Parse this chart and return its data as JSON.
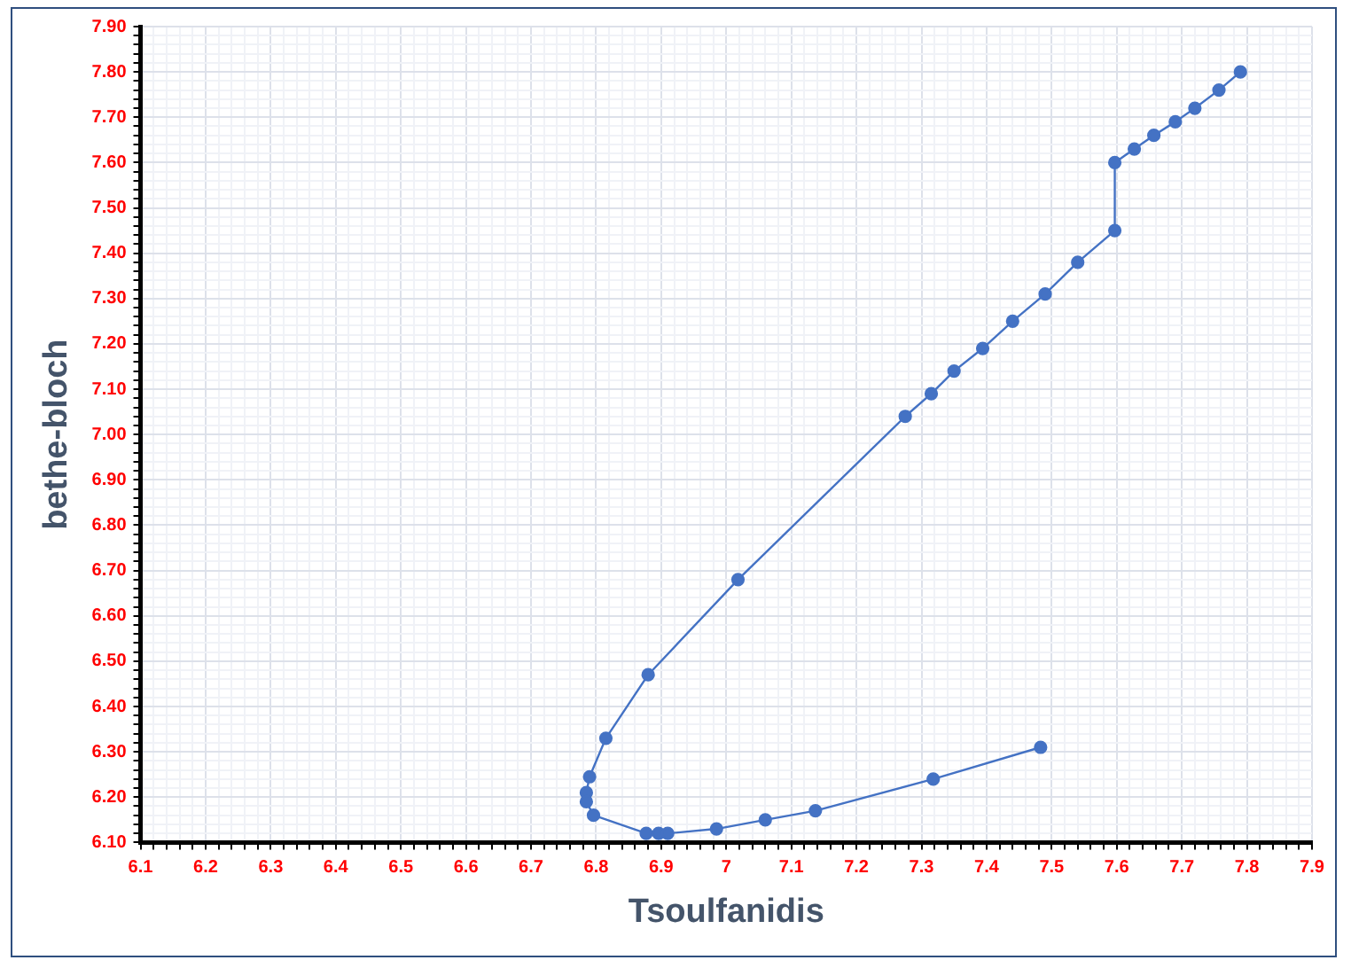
{
  "chart_data": {
    "type": "line",
    "xlabel": "Tsoulfanidis",
    "ylabel": "bethe-bloch",
    "xlim": [
      6.1,
      7.9
    ],
    "xticks": [
      6.1,
      6.2,
      6.3,
      6.4,
      6.5,
      6.6,
      6.7,
      6.8,
      6.9,
      7,
      7.1,
      7.2,
      7.3,
      7.4,
      7.5,
      7.6,
      7.7,
      7.8,
      7.9
    ],
    "ylim": [
      6.1,
      7.9
    ],
    "yticks": [
      {
        "value": 6.1,
        "label": "6.10"
      },
      {
        "value": 6.2,
        "label": "6.20"
      },
      {
        "value": 6.3,
        "label": "6.30"
      },
      {
        "value": 6.4,
        "label": "6.40"
      },
      {
        "value": 6.5,
        "label": "6.50"
      },
      {
        "value": 6.6,
        "label": "6.60"
      },
      {
        "value": 6.7,
        "label": "6.70"
      },
      {
        "value": 6.8,
        "label": "6.80"
      },
      {
        "value": 6.9,
        "label": "6.90"
      },
      {
        "value": 7.0,
        "label": "7.00"
      },
      {
        "value": 7.1,
        "label": "7.10"
      },
      {
        "value": 7.2,
        "label": "7.20"
      },
      {
        "value": 7.3,
        "label": "7.30"
      },
      {
        "value": 7.4,
        "label": "7.40"
      },
      {
        "value": 7.5,
        "label": "7.50"
      },
      {
        "value": 7.6,
        "label": "7.60"
      },
      {
        "value": 7.7,
        "label": "7.70"
      },
      {
        "value": 7.8,
        "label": "7.80"
      },
      {
        "value": 7.9,
        "label": "7.90"
      }
    ],
    "grid": true,
    "marker": "circle",
    "line_style": "solid",
    "series": [
      {
        "color": "#4472c4",
        "x": [
          7.79,
          7.757,
          7.72,
          7.69,
          7.657,
          7.627,
          7.597,
          7.597,
          7.54,
          7.49,
          7.44,
          7.394,
          7.35,
          7.315,
          7.275,
          7.018,
          6.88,
          6.815,
          6.79,
          6.785,
          6.785,
          6.796,
          6.877,
          6.896,
          6.91,
          6.985,
          7.06,
          7.137,
          7.318,
          7.483
        ],
        "values": [
          7.8,
          7.76,
          7.72,
          7.69,
          7.66,
          7.63,
          7.6,
          7.45,
          7.38,
          7.31,
          7.25,
          7.19,
          7.14,
          7.09,
          7.04,
          6.68,
          6.47,
          6.33,
          6.245,
          6.21,
          6.19,
          6.16,
          6.12,
          6.12,
          6.12,
          6.13,
          6.15,
          6.17,
          6.24,
          6.31
        ]
      }
    ]
  }
}
